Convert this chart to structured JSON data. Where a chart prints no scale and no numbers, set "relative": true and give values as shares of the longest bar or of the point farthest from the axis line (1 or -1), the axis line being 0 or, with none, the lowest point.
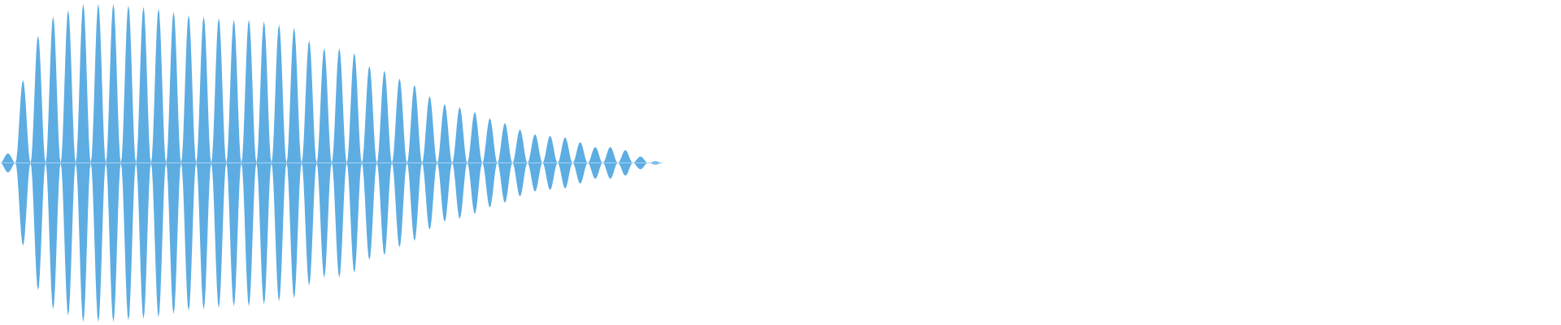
{
  "chart_data": {
    "type": "area",
    "relative": true,
    "categories": [
      null,
      null,
      null,
      null,
      null,
      null,
      null,
      null,
      null,
      null,
      null,
      null,
      null,
      null,
      null,
      null,
      null,
      null,
      null,
      null,
      null,
      null,
      null,
      null,
      null,
      null,
      null,
      null,
      null,
      null,
      null,
      null,
      null,
      null,
      null,
      null,
      null,
      null,
      null,
      null,
      null,
      null,
      null,
      null,
      null,
      null,
      null,
      null,
      null,
      null,
      null,
      null,
      null,
      null,
      null,
      null,
      null,
      null,
      null,
      null,
      null,
      null,
      null,
      null,
      null,
      null,
      null,
      null,
      null,
      null,
      null,
      null,
      null,
      null,
      null,
      null,
      null,
      null,
      null,
      null,
      null,
      null,
      null,
      null,
      null,
      null,
      null,
      null,
      null
    ],
    "series": [
      {
        "color": "#5dade2",
        "values": [
          0,
          0.06,
          0,
          0.52,
          0,
          0.8,
          0,
          0.92,
          0,
          0.96,
          0,
          1,
          0,
          1,
          0,
          1,
          0,
          0.99,
          0,
          0.98,
          0,
          0.97,
          0,
          0.95,
          0,
          0.93,
          0,
          0.92,
          0,
          0.91,
          0,
          0.9,
          0,
          0.9,
          0,
          0.89,
          0,
          0.87,
          0,
          0.85,
          0,
          0.77,
          0,
          0.72,
          0,
          0.72,
          0,
          0.69,
          0,
          0.61,
          0,
          0.58,
          0,
          0.53,
          0,
          0.49,
          0,
          0.42,
          0,
          0.37,
          0,
          0.35,
          0,
          0.32,
          0,
          0.28,
          0,
          0.25,
          0,
          0.21,
          0,
          0.18,
          0,
          0.17,
          0,
          0.16,
          0,
          0.13,
          0,
          0.1,
          0,
          0.1,
          0,
          0.08,
          0,
          0.04,
          0,
          0.01,
          0
        ]
      },
      {
        "color": "#5dade2",
        "values": [
          0,
          -0.06,
          0,
          -0.52,
          0,
          -0.8,
          0,
          -0.92,
          0,
          -0.96,
          0,
          -1,
          0,
          -1,
          0,
          -1,
          0,
          -0.99,
          0,
          -0.98,
          0,
          -0.97,
          0,
          -0.95,
          0,
          -0.93,
          0,
          -0.92,
          0,
          -0.91,
          0,
          -0.9,
          0,
          -0.9,
          0,
          -0.89,
          0,
          -0.87,
          0,
          -0.85,
          0,
          -0.77,
          0,
          -0.72,
          0,
          -0.72,
          0,
          -0.69,
          0,
          -0.61,
          0,
          -0.58,
          0,
          -0.53,
          0,
          -0.49,
          0,
          -0.42,
          0,
          -0.37,
          0,
          -0.35,
          0,
          -0.32,
          0,
          -0.28,
          0,
          -0.25,
          0,
          -0.21,
          0,
          -0.18,
          0,
          -0.17,
          0,
          -0.16,
          0,
          -0.13,
          0,
          -0.1,
          0,
          -0.1,
          0,
          -0.08,
          0,
          -0.04,
          0,
          -0.01,
          0
        ]
      }
    ]
  }
}
